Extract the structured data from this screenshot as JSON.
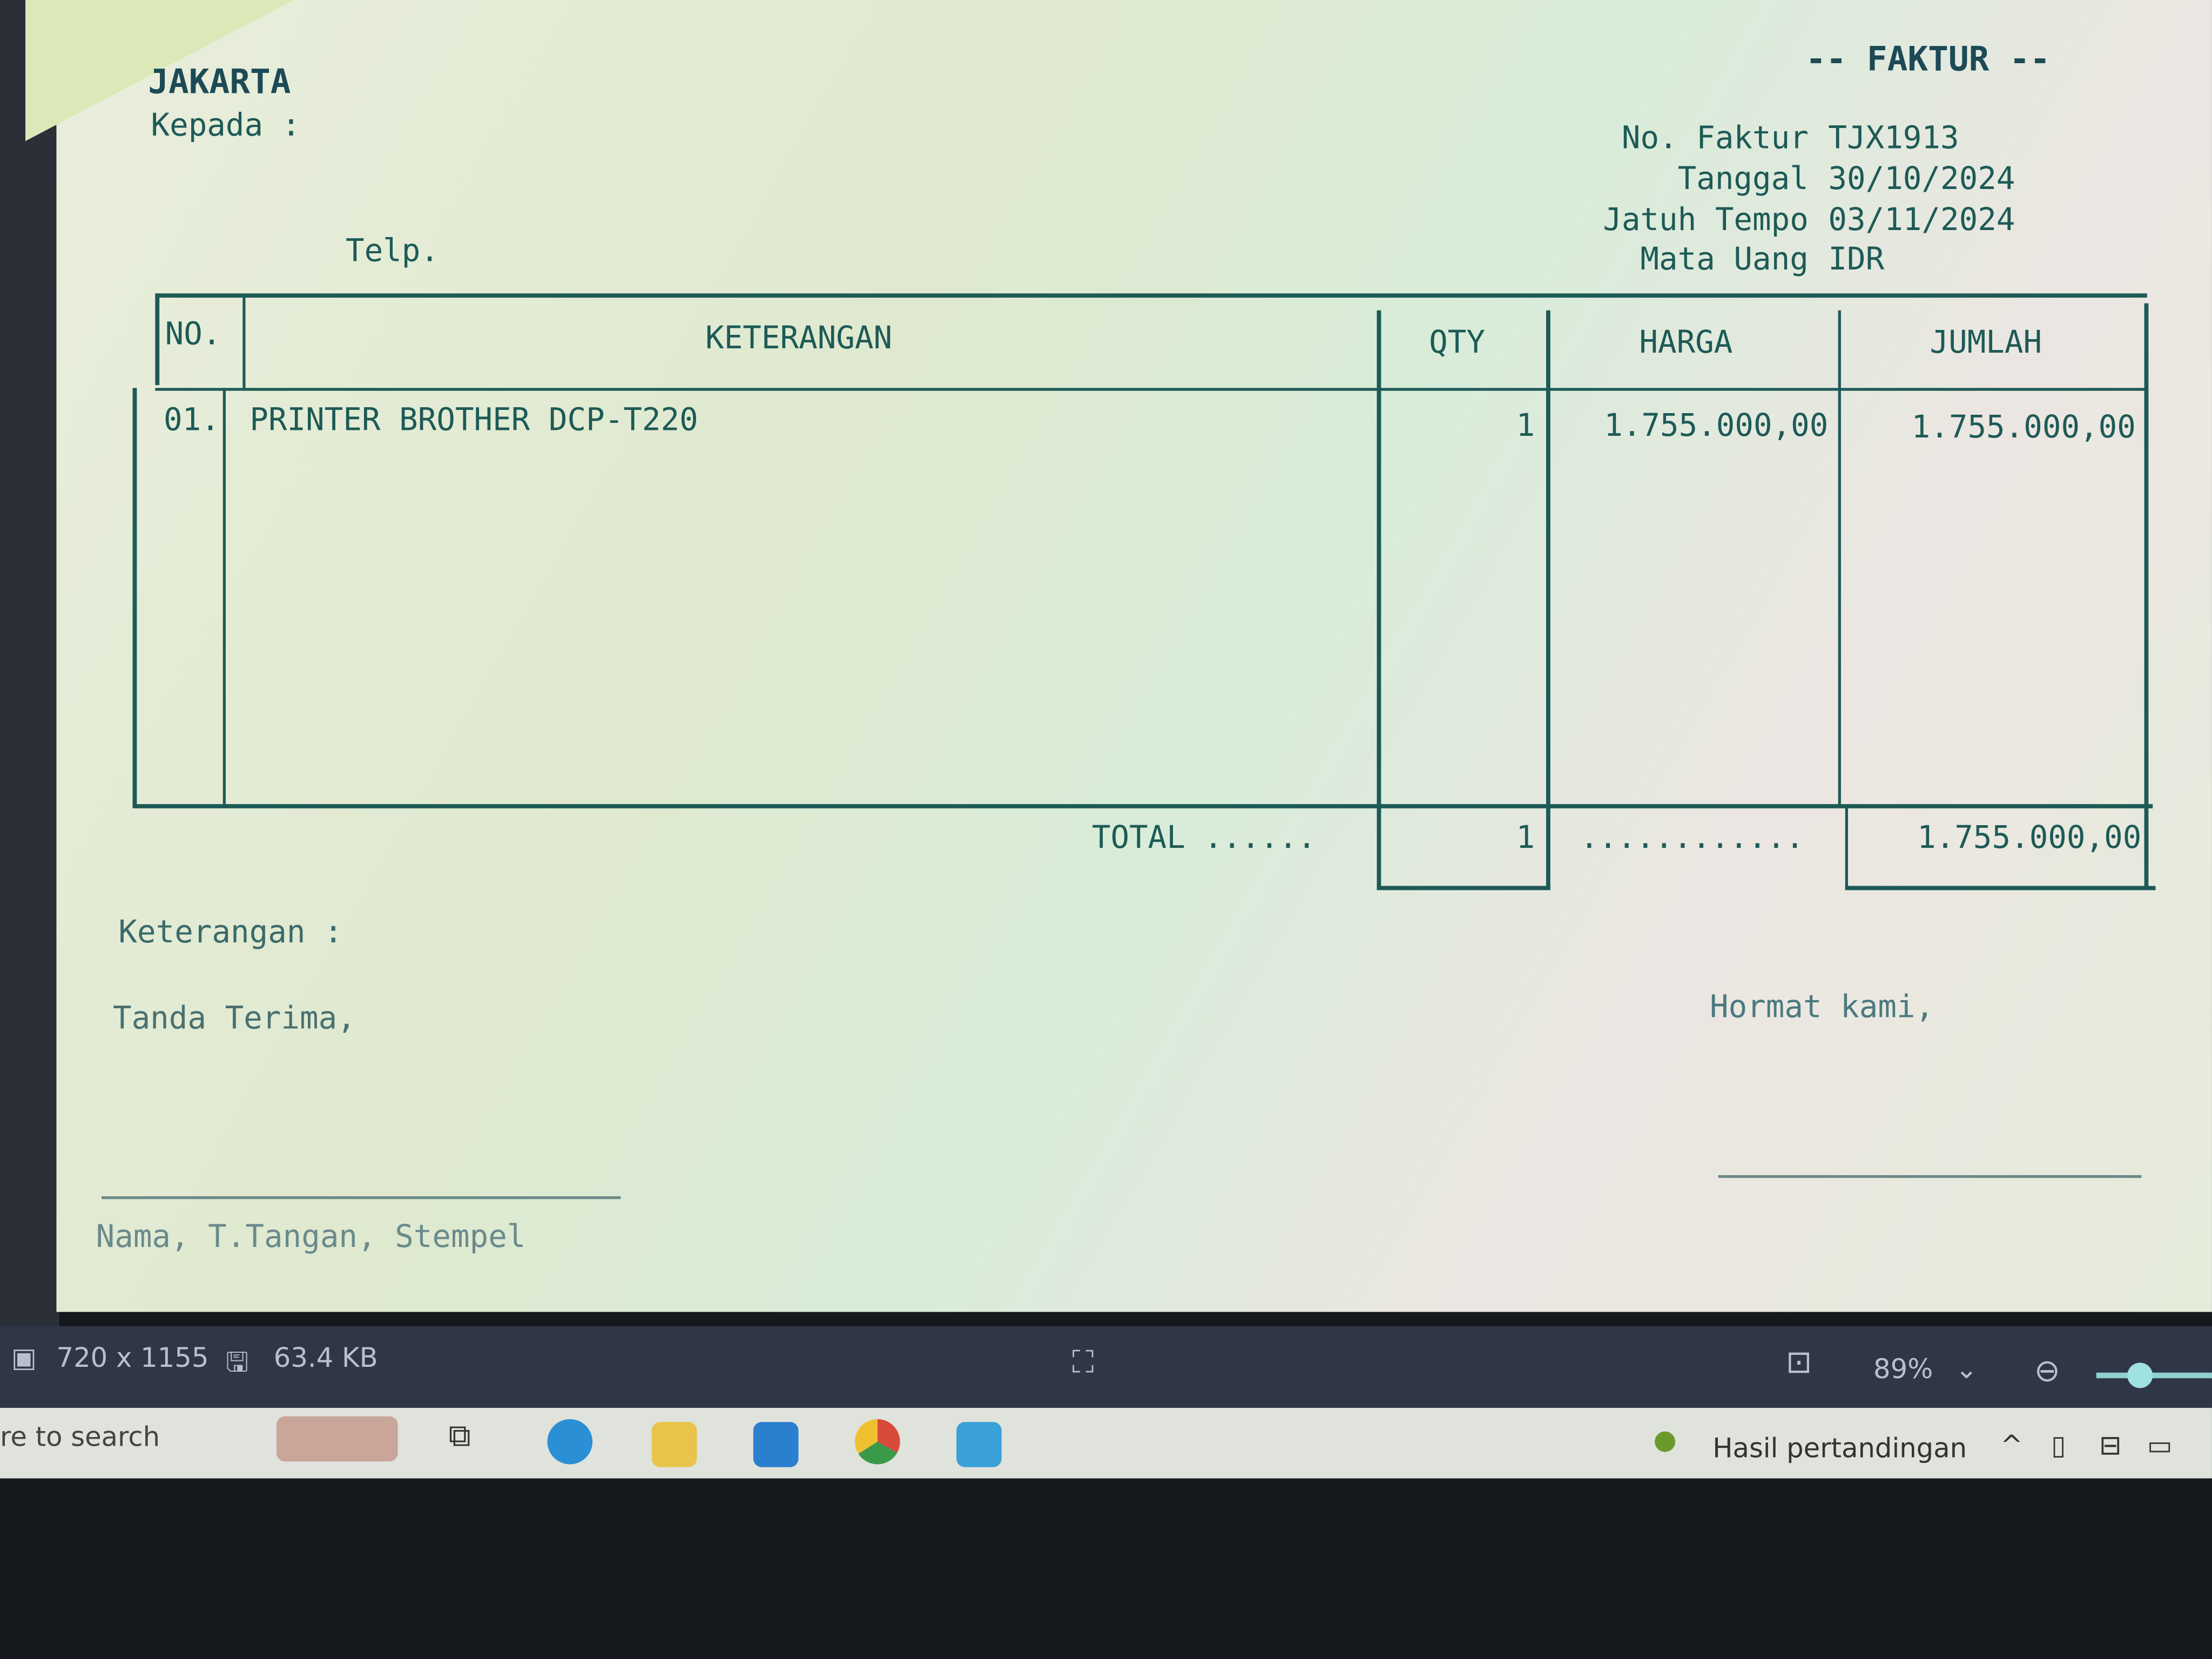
{
  "invoice": {
    "city": "JAKARTA",
    "to_label": "Kepada :",
    "phone_label": "Telp.",
    "title": "-- FAKTUR --",
    "meta": [
      {
        "label": "No. Faktur",
        "value": "TJX1913"
      },
      {
        "label": "Tanggal",
        "value": "30/10/2024"
      },
      {
        "label": "Jatuh Tempo",
        "value": "03/11/2024"
      },
      {
        "label": "Mata Uang",
        "value": "IDR"
      }
    ],
    "columns": [
      "NO.",
      "KETERANGAN",
      "QTY",
      "HARGA",
      "JUMLAH"
    ],
    "rows": [
      {
        "no": "01.",
        "desc": "PRINTER BROTHER DCP-T220",
        "qty": "1",
        "price": "1.755.000,00",
        "amount": "1.755.000,00"
      }
    ],
    "total_label": "TOTAL ......",
    "total_qty": "1",
    "total_dots": "............",
    "total_amount": "1.755.000,00",
    "notes_label": "Keterangan :",
    "receipt_label": "Tanda Terima,",
    "regards_label": "Hormat kami,",
    "sign_label": "Nama, T.Tangan, Stempel"
  },
  "viewer": {
    "dimensions": "720 x 1155",
    "file_size": "63.4 KB",
    "zoom": "89%"
  },
  "taskbar": {
    "search_placeholder": "re to search",
    "news": "Hasil pertandingan"
  }
}
